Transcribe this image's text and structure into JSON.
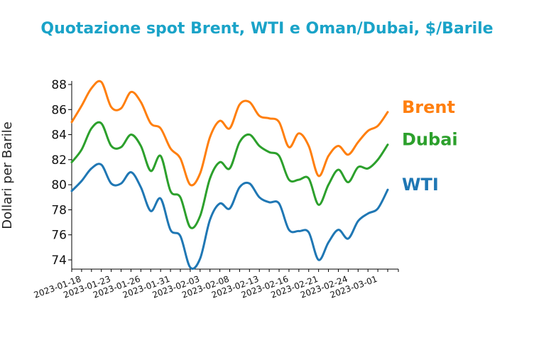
{
  "chart_data": {
    "type": "line",
    "title": "Quotazione spot Brent, WTI e Oman/Dubai, $/Barile",
    "title_color": "#1aa3c8",
    "ylabel": "Dollari per Barile",
    "xlabel": "",
    "ylim": [
      73.5,
      88.3
    ],
    "y_ticks": [
      74,
      76,
      78,
      80,
      82,
      84,
      86,
      88
    ],
    "x_tick_labels": [
      "2023-01-18",
      "2023-01-23",
      "2023-01-26",
      "2023-01-31",
      "2023-02-03",
      "2023-02-08",
      "2023-02-13",
      "2023-02-16",
      "2023-02-21",
      "2023-02-24",
      "2023-03-01"
    ],
    "x_tick_index": [
      0,
      3,
      6,
      9,
      12,
      15,
      18,
      21,
      24,
      27,
      30
    ],
    "grid": false,
    "legend": "inline labels at right end of lines",
    "series": [
      {
        "name": "Brent",
        "color": "#ff7f0e",
        "values": [
          85.0,
          86.3,
          87.7,
          88.2,
          86.2,
          86.1,
          87.4,
          86.6,
          84.9,
          84.5,
          82.9,
          82.1,
          80.0,
          80.9,
          83.8,
          85.1,
          84.5,
          86.4,
          86.6,
          85.5,
          85.3,
          85.0,
          83.0,
          84.1,
          83.1,
          80.7,
          82.3,
          83.1,
          82.4,
          83.4,
          84.3,
          84.7,
          85.8
        ]
      },
      {
        "name": "Dubai",
        "color": "#2ca02c",
        "values": [
          81.8,
          82.8,
          84.5,
          84.9,
          83.1,
          83.0,
          84.0,
          83.1,
          81.1,
          82.3,
          79.5,
          79.0,
          76.6,
          77.5,
          80.5,
          81.8,
          81.3,
          83.4,
          84.0,
          83.1,
          82.6,
          82.3,
          80.4,
          80.4,
          80.5,
          78.4,
          80.0,
          81.2,
          80.2,
          81.4,
          81.3,
          82.0,
          83.2
        ]
      },
      {
        "name": "WTI",
        "color": "#1f77b4",
        "values": [
          79.5,
          80.3,
          81.3,
          81.6,
          80.1,
          80.1,
          81.0,
          79.8,
          77.9,
          78.9,
          76.4,
          75.9,
          73.4,
          74.1,
          77.2,
          78.5,
          78.1,
          79.8,
          80.1,
          79.0,
          78.6,
          78.5,
          76.4,
          76.3,
          76.2,
          74.0,
          75.4,
          76.4,
          75.7,
          77.1,
          77.7,
          78.1,
          79.6
        ]
      }
    ]
  }
}
